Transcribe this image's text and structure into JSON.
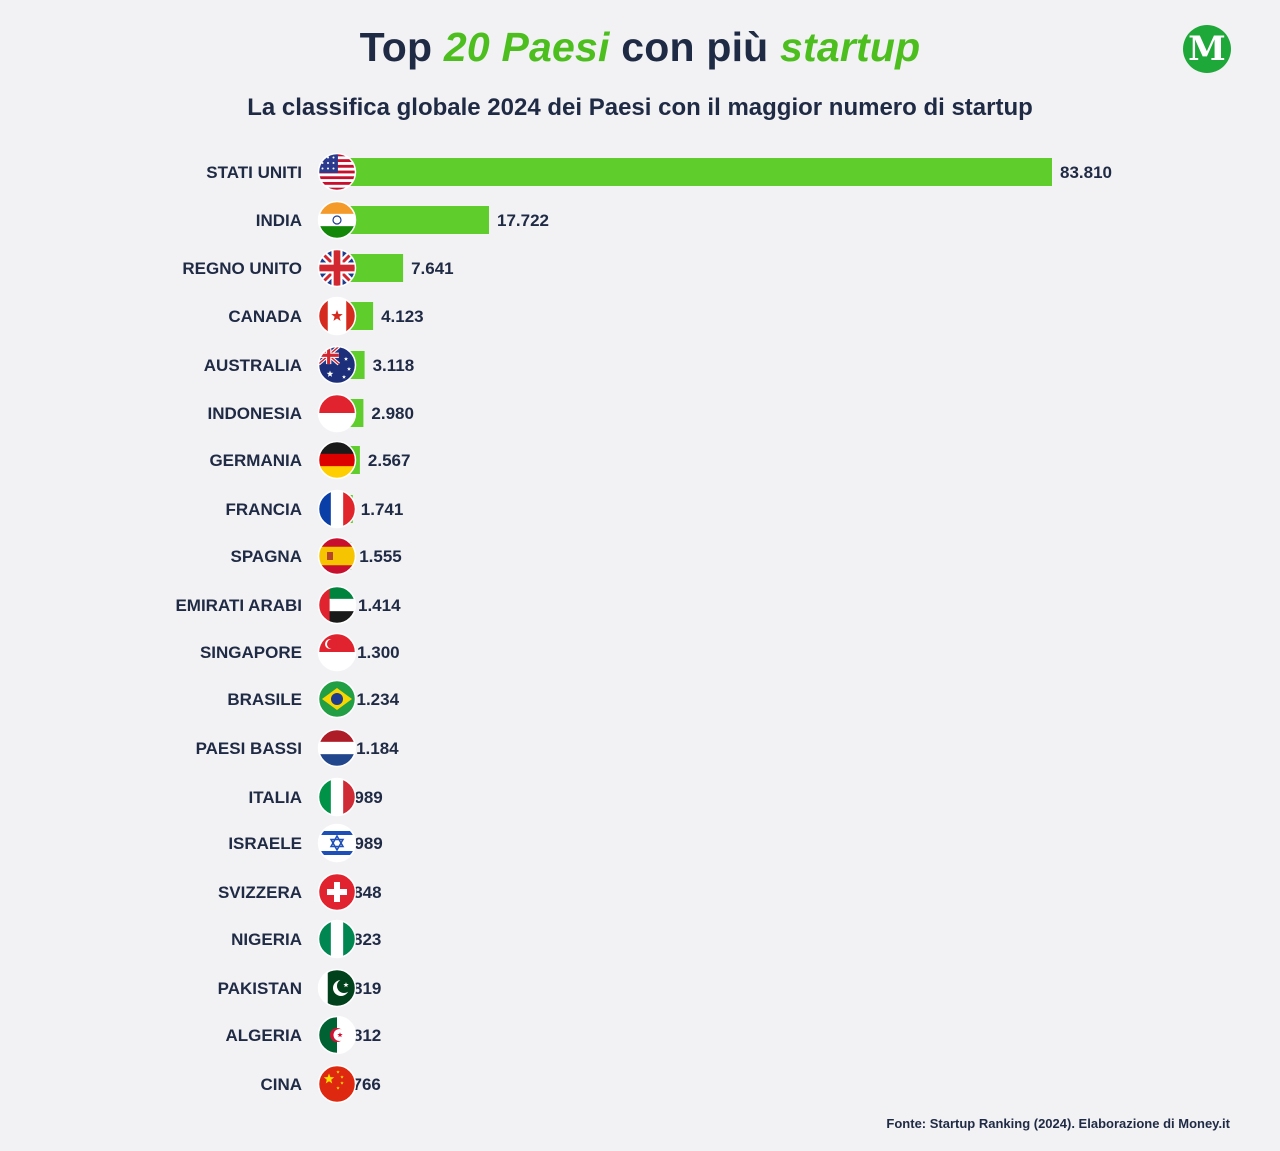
{
  "header": {
    "title_part1": "Top ",
    "title_part2": "20 Paesi",
    "title_part3": " con più ",
    "title_part4": "startup",
    "subtitle": "La classifica globale 2024 dei Paesi con il maggior numero di startup",
    "logo_letter": "M"
  },
  "footer": {
    "source": "Fonte: Startup Ranking (2024). Elaborazione di Money.it"
  },
  "colors": {
    "bar": "#5fcd2c",
    "text": "#1f2a44",
    "accent": "#4cbf1f"
  },
  "chart_data": {
    "type": "bar",
    "orientation": "horizontal",
    "categories": [
      "STATI UNITI",
      "INDIA",
      "REGNO UNITO",
      "CANADA",
      "AUSTRALIA",
      "INDONESIA",
      "GERMANIA",
      "FRANCIA",
      "SPAGNA",
      "EMIRATI ARABI",
      "SINGAPORE",
      "BRASILE",
      "PAESI BASSI",
      "ITALIA",
      "ISRAELE",
      "SVIZZERA",
      "NIGERIA",
      "PAKISTAN",
      "ALGERIA",
      "CINA"
    ],
    "values": [
      83810,
      17722,
      7641,
      4123,
      3118,
      2980,
      2567,
      1741,
      1555,
      1414,
      1300,
      1234,
      1184,
      989,
      989,
      848,
      823,
      819,
      812,
      766
    ],
    "value_labels": [
      "83.810",
      "17.722",
      "7.641",
      "4.123",
      "3.118",
      "2.980",
      "2.567",
      "1.741",
      "1.555",
      "1.414",
      "1.300",
      "1.234",
      "1.184",
      "989",
      "989",
      "848",
      "823",
      "819",
      "812",
      "766"
    ],
    "flag_icons": [
      "flag-us-icon",
      "flag-in-icon",
      "flag-gb-icon",
      "flag-ca-icon",
      "flag-au-icon",
      "flag-id-icon",
      "flag-de-icon",
      "flag-fr-icon",
      "flag-es-icon",
      "flag-ae-icon",
      "flag-sg-icon",
      "flag-br-icon",
      "flag-nl-icon",
      "flag-it-icon",
      "flag-il-icon",
      "flag-ch-icon",
      "flag-ng-icon",
      "flag-pk-icon",
      "flag-dz-icon",
      "flag-cn-icon"
    ],
    "xlim": [
      0,
      83810
    ],
    "grid": false,
    "legend": "none"
  }
}
